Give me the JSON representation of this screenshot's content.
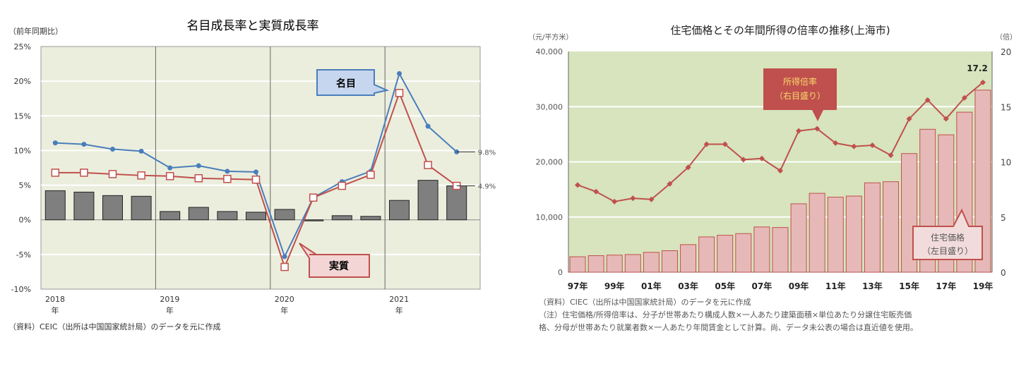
{
  "chart_data": [
    {
      "type": "bar+line",
      "title": "名目成長率と実質成長率",
      "ylabel": "（前年同期比）",
      "ylim": [
        -10,
        25
      ],
      "yticks": [
        "-10%",
        "-5%",
        "0%",
        "5%",
        "10%",
        "15%",
        "20%",
        "25%"
      ],
      "xlabels": [
        "2018\n年",
        "2019\n年",
        "2020\n年",
        "2021\n年"
      ],
      "grid": true,
      "series": [
        {
          "name": "名目",
          "kind": "line",
          "color": "#4a7ebb",
          "values": [
            11.1,
            10.9,
            10.2,
            9.9,
            7.5,
            7.8,
            7.0,
            6.9,
            -5.3,
            3.2,
            5.5,
            7.0,
            21.1,
            13.5,
            9.8
          ]
        },
        {
          "name": "実質",
          "kind": "line",
          "color": "#c0504d",
          "values": [
            6.8,
            6.8,
            6.6,
            6.4,
            6.3,
            6.0,
            5.9,
            5.8,
            -6.8,
            3.2,
            4.9,
            6.5,
            18.3,
            7.9,
            4.9
          ]
        },
        {
          "kind": "bar",
          "color": "#7f7f7f",
          "values": [
            4.2,
            4.0,
            3.5,
            3.4,
            1.2,
            1.8,
            1.2,
            1.1,
            1.5,
            -0.1,
            0.6,
            0.5,
            2.8,
            5.7,
            4.9
          ]
        }
      ],
      "annotations": [
        "9.8%",
        "4.9%"
      ],
      "source": "（資料）CEIC（出所は中国国家統計局）のデータを元に作成"
    },
    {
      "type": "bar+line",
      "title": "住宅価格とその年間所得の倍率の推移(上海市)",
      "ylabel_left": "（元/平方米）",
      "ylabel_right": "（倍）",
      "ylim_left": [
        0,
        40000
      ],
      "ylim_right": [
        0,
        20
      ],
      "yticks_left": [
        "0",
        "10,000",
        "20,000",
        "30,000",
        "40,000"
      ],
      "yticks_right": [
        "0",
        "5",
        "10",
        "15",
        "20"
      ],
      "categories": [
        "97年",
        "98年",
        "99年",
        "00年",
        "01年",
        "02年",
        "03年",
        "04年",
        "05年",
        "06年",
        "07年",
        "08年",
        "09年",
        "10年",
        "11年",
        "12年",
        "13年",
        "14年",
        "15年",
        "16年",
        "17年",
        "18年",
        "19年"
      ],
      "xtick_labels": [
        "97年",
        "99年",
        "01年",
        "03年",
        "05年",
        "07年",
        "09年",
        "11年",
        "13年",
        "15年",
        "17年",
        "19年"
      ],
      "grid": true,
      "series": [
        {
          "name": "住宅価格（左目盛り）",
          "kind": "bar",
          "color": "#e6b9b8",
          "values": [
            2800,
            3000,
            3100,
            3200,
            3600,
            3900,
            5000,
            6400,
            6700,
            7000,
            8200,
            8100,
            12400,
            14300,
            13600,
            13800,
            16200,
            16400,
            21500,
            25900,
            24900,
            29000,
            33000
          ]
        },
        {
          "name": "所得倍率（右目盛り）",
          "kind": "line",
          "color": "#c0504d",
          "values": [
            7.9,
            7.3,
            6.4,
            6.7,
            6.6,
            8.0,
            9.5,
            11.6,
            11.6,
            10.2,
            10.3,
            9.2,
            12.8,
            13.0,
            11.7,
            11.4,
            11.5,
            10.6,
            13.9,
            15.6,
            13.9,
            15.8,
            17.2
          ]
        }
      ],
      "callouts": {
        "ratio_line1": "所得倍率",
        "ratio_line2": "（右目盛り）",
        "price_line1": "住宅価格",
        "price_line2": "（左目盛り）",
        "last_value": "17.2"
      },
      "source": "（資料）CIEC（出所は中国国家統計局）のデータを元に作成",
      "note1": "（注）住宅価格/所得倍率は、分子が世帯あたり構成人数×一人あたり建築面積×単位あたり分譲住宅販売価",
      "note2": "格、分母が世帯あたり就業者数×一人あたり年間賃金として計算。尚、データ未公表の場合は直近値を使用。"
    }
  ]
}
